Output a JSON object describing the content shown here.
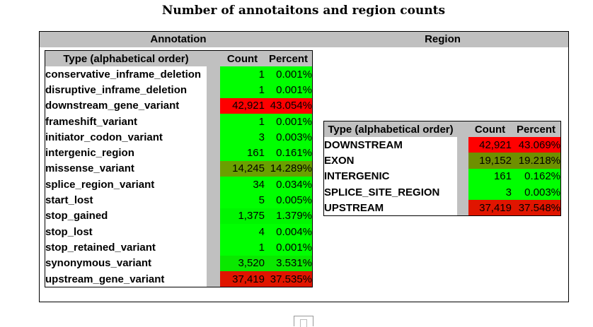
{
  "title": "Number of annotaitons and region counts",
  "annotation_section": {
    "header": "Annotation",
    "columns": [
      "Type (alphabetical order)",
      "Count",
      "Percent"
    ],
    "rows": [
      {
        "type": "conservative_inframe_deletion",
        "count": "1",
        "percent": "0.001%",
        "color": "#00ff00"
      },
      {
        "type": "disruptive_inframe_deletion",
        "count": "1",
        "percent": "0.001%",
        "color": "#00ff00"
      },
      {
        "type": "downstream_gene_variant",
        "count": "42,921",
        "percent": "43.054%",
        "color": "#ff0000"
      },
      {
        "type": "frameshift_variant",
        "count": "1",
        "percent": "0.001%",
        "color": "#00ff00"
      },
      {
        "type": "initiator_codon_variant",
        "count": "3",
        "percent": "0.003%",
        "color": "#00ff00"
      },
      {
        "type": "intergenic_region",
        "count": "161",
        "percent": "0.161%",
        "color": "#00ff00"
      },
      {
        "type": "missense_variant",
        "count": "14,245",
        "percent": "14.289%",
        "color": "#6aa000"
      },
      {
        "type": "splice_region_variant",
        "count": "34",
        "percent": "0.034%",
        "color": "#00ff00"
      },
      {
        "type": "start_lost",
        "count": "5",
        "percent": "0.005%",
        "color": "#00ff00"
      },
      {
        "type": "stop_gained",
        "count": "1,375",
        "percent": "1.379%",
        "color": "#00f600"
      },
      {
        "type": "stop_lost",
        "count": "4",
        "percent": "0.004%",
        "color": "#00ff00"
      },
      {
        "type": "stop_retained_variant",
        "count": "1",
        "percent": "0.001%",
        "color": "#00ff00"
      },
      {
        "type": "synonymous_variant",
        "count": "3,520",
        "percent": "3.531%",
        "color": "#0ae800"
      },
      {
        "type": "upstream_gene_variant",
        "count": "37,419",
        "percent": "37.535%",
        "color": "#e01500"
      }
    ]
  },
  "region_section": {
    "header": "Region",
    "columns": [
      "Type (alphabetical order)",
      "Count",
      "Percent"
    ],
    "rows": [
      {
        "type": "DOWNSTREAM",
        "count": "42,921",
        "percent": "43.069%",
        "color": "#ff0000"
      },
      {
        "type": "EXON",
        "count": "19,152",
        "percent": "19.218%",
        "color": "#6e9000"
      },
      {
        "type": "INTERGENIC",
        "count": "161",
        "percent": "0.162%",
        "color": "#00ff00"
      },
      {
        "type": "SPLICE_SITE_REGION",
        "count": "3",
        "percent": "0.003%",
        "color": "#00ff00"
      },
      {
        "type": "UPSTREAM",
        "count": "37,419",
        "percent": "37.548%",
        "color": "#e01500"
      }
    ]
  }
}
